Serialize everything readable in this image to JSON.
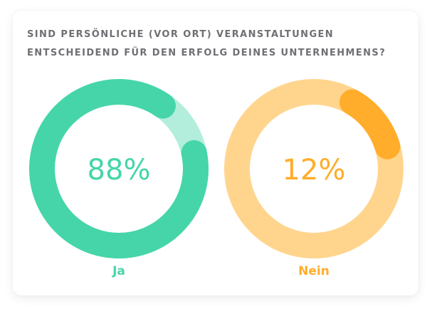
{
  "chart_data": {
    "type": "pie",
    "subtype": "donut",
    "title": [
      "SIND PERSÖNLICHE (VOR ORT) VERANSTALTUNGEN",
      "ENTSCHEIDEND FÜR DEN ERFOLG DEINES UNTERNEHMENS?"
    ],
    "series": [
      {
        "name": "Ja",
        "value": 88,
        "label": "88%",
        "color": "#45d5a9",
        "track_color": "#b2eedb",
        "direction": "counterclockwise-from-top"
      },
      {
        "name": "Nein",
        "value": 12,
        "label": "12%",
        "color": "#ffad2a",
        "track_color": "#ffd58e",
        "direction": "clockwise-from-top"
      }
    ]
  }
}
